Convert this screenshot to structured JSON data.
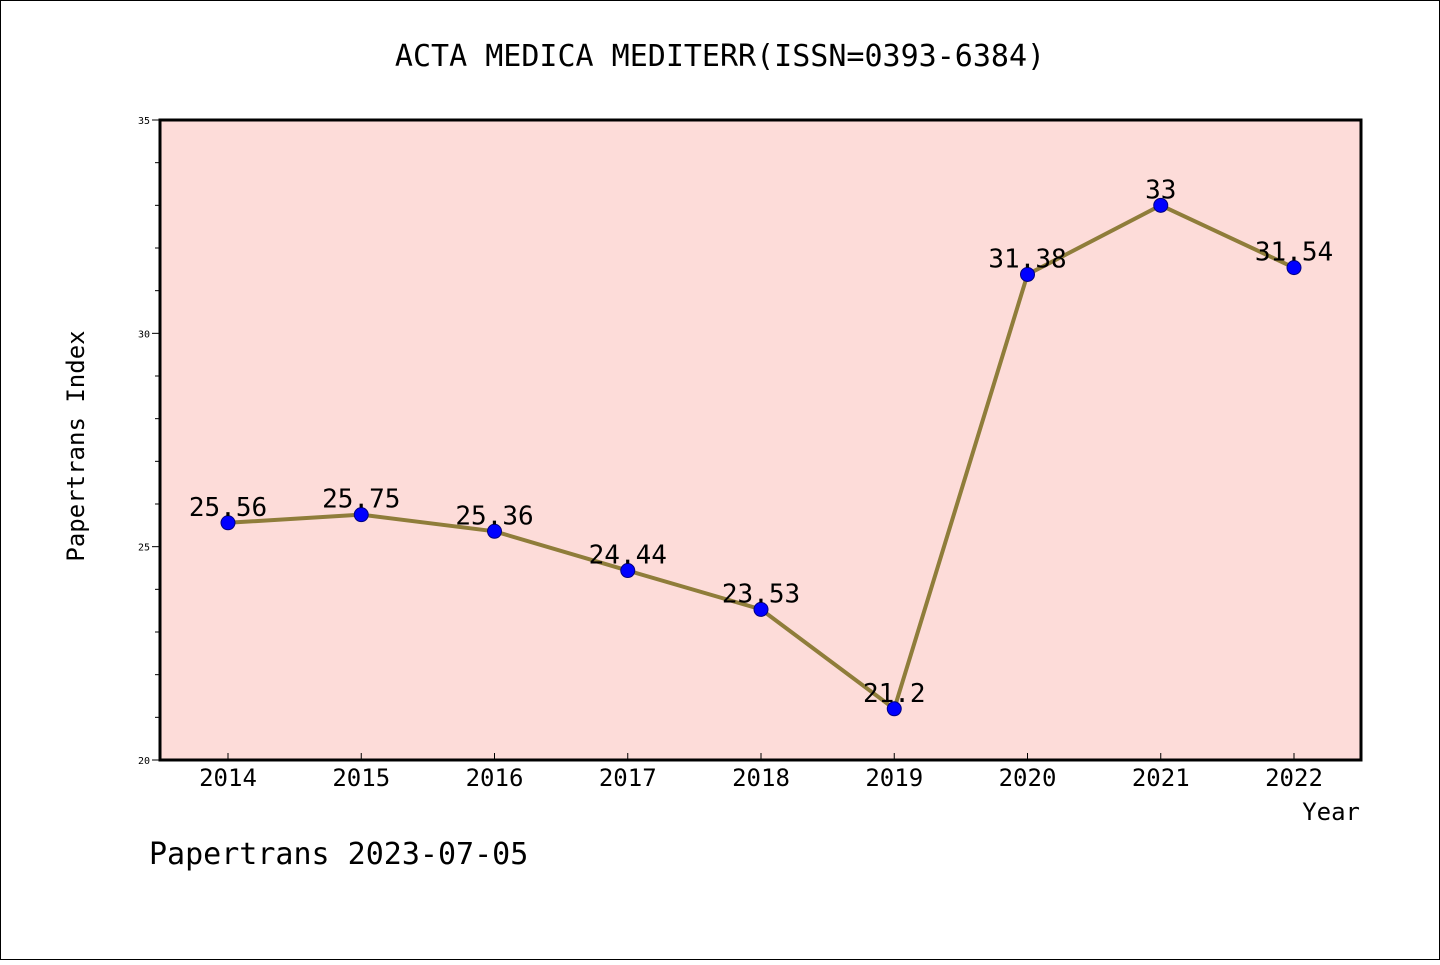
{
  "chart_data": {
    "type": "line",
    "title": "ACTA MEDICA MEDITERR(ISSN=0393-6384)",
    "xlabel": "Year",
    "ylabel": "Papertrans Index",
    "categories": [
      "2014",
      "2015",
      "2016",
      "2017",
      "2018",
      "2019",
      "2020",
      "2021",
      "2022"
    ],
    "series": [
      {
        "name": "Papertrans Index",
        "values": [
          25.56,
          25.75,
          25.36,
          24.44,
          23.53,
          21.2,
          31.38,
          33,
          31.54
        ],
        "value_labels": [
          "25.56",
          "25.75",
          "25.36",
          "24.44",
          "23.53",
          "21.2",
          "31.38",
          "33",
          "31.54"
        ]
      }
    ],
    "ylim": [
      20,
      35
    ],
    "y_major_ticks": [
      20,
      25,
      30,
      35
    ],
    "y_major_tick_labels": [
      "20",
      "25",
      "30",
      "35"
    ],
    "y_minor_step": 1,
    "grid": false,
    "legend": "none"
  },
  "footer": {
    "text": "Papertrans 2023-07-05"
  },
  "colors": {
    "page_background": "#ffffff",
    "plot_background": "#fddcd9",
    "line": "#8f7d3a",
    "marker_fill": "#0000ff",
    "marker_stroke": "#000080",
    "frame": "#000000",
    "text": "#000000"
  }
}
